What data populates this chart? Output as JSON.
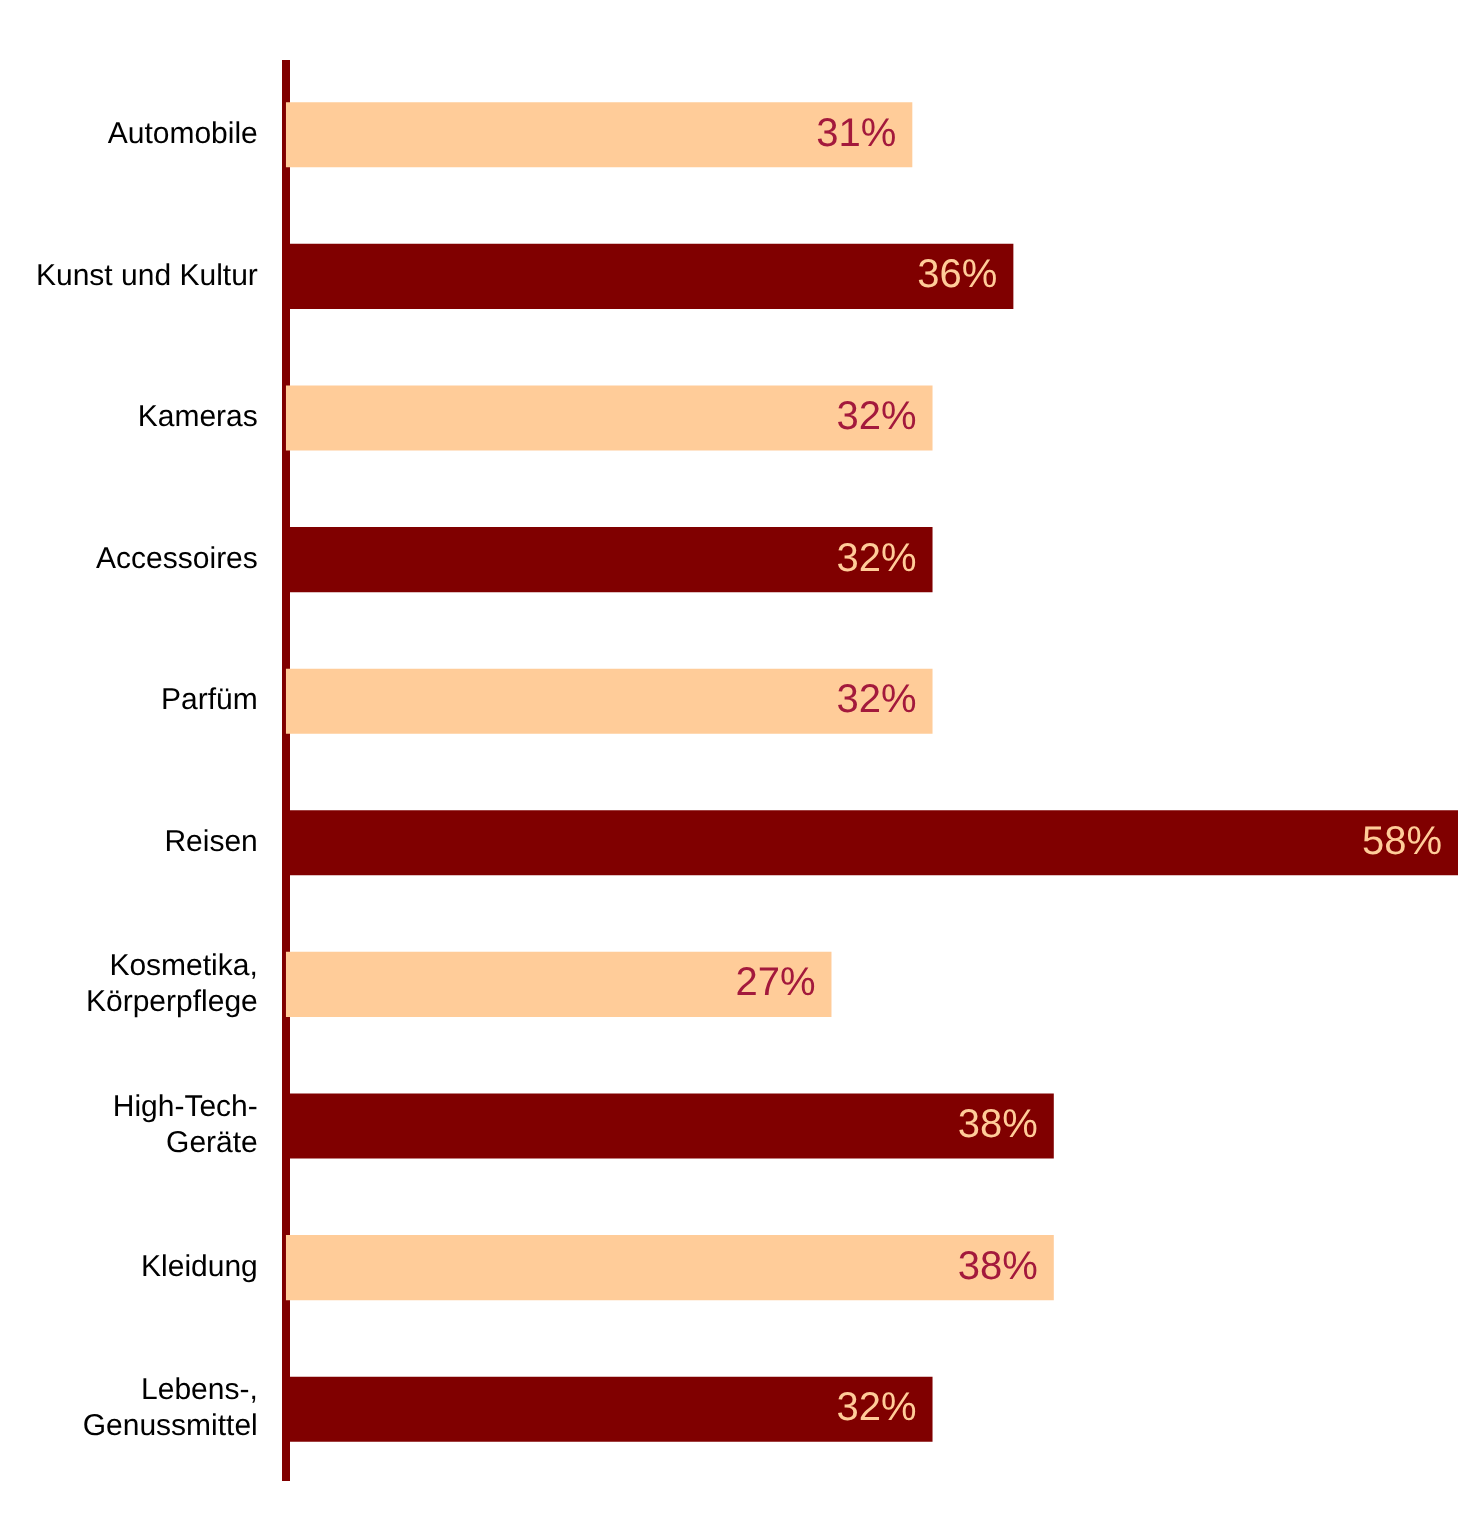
{
  "chart_data": {
    "type": "bar",
    "orientation": "horizontal",
    "categories": [
      "Automobile",
      "Kunst und Kultur",
      "Kameras",
      "Accessoires",
      "Parfüm",
      "Reisen",
      "Kosmetika, Körperpflege",
      "High-Tech-Geräte",
      "Kleidung",
      "Lebens-, Genussmittel"
    ],
    "values": [
      31,
      36,
      32,
      32,
      32,
      58,
      27,
      38,
      38,
      32
    ],
    "colors": [
      "#ffcc99",
      "#800000",
      "#ffcc99",
      "#800000",
      "#ffcc99",
      "#800000",
      "#ffcc99",
      "#800000",
      "#ffcc99",
      "#800000"
    ],
    "value_labels": [
      "31%",
      "36%",
      "32%",
      "32%",
      "32%",
      "58%",
      "27%",
      "38%",
      "38%",
      "32%"
    ],
    "legend": false
  }
}
